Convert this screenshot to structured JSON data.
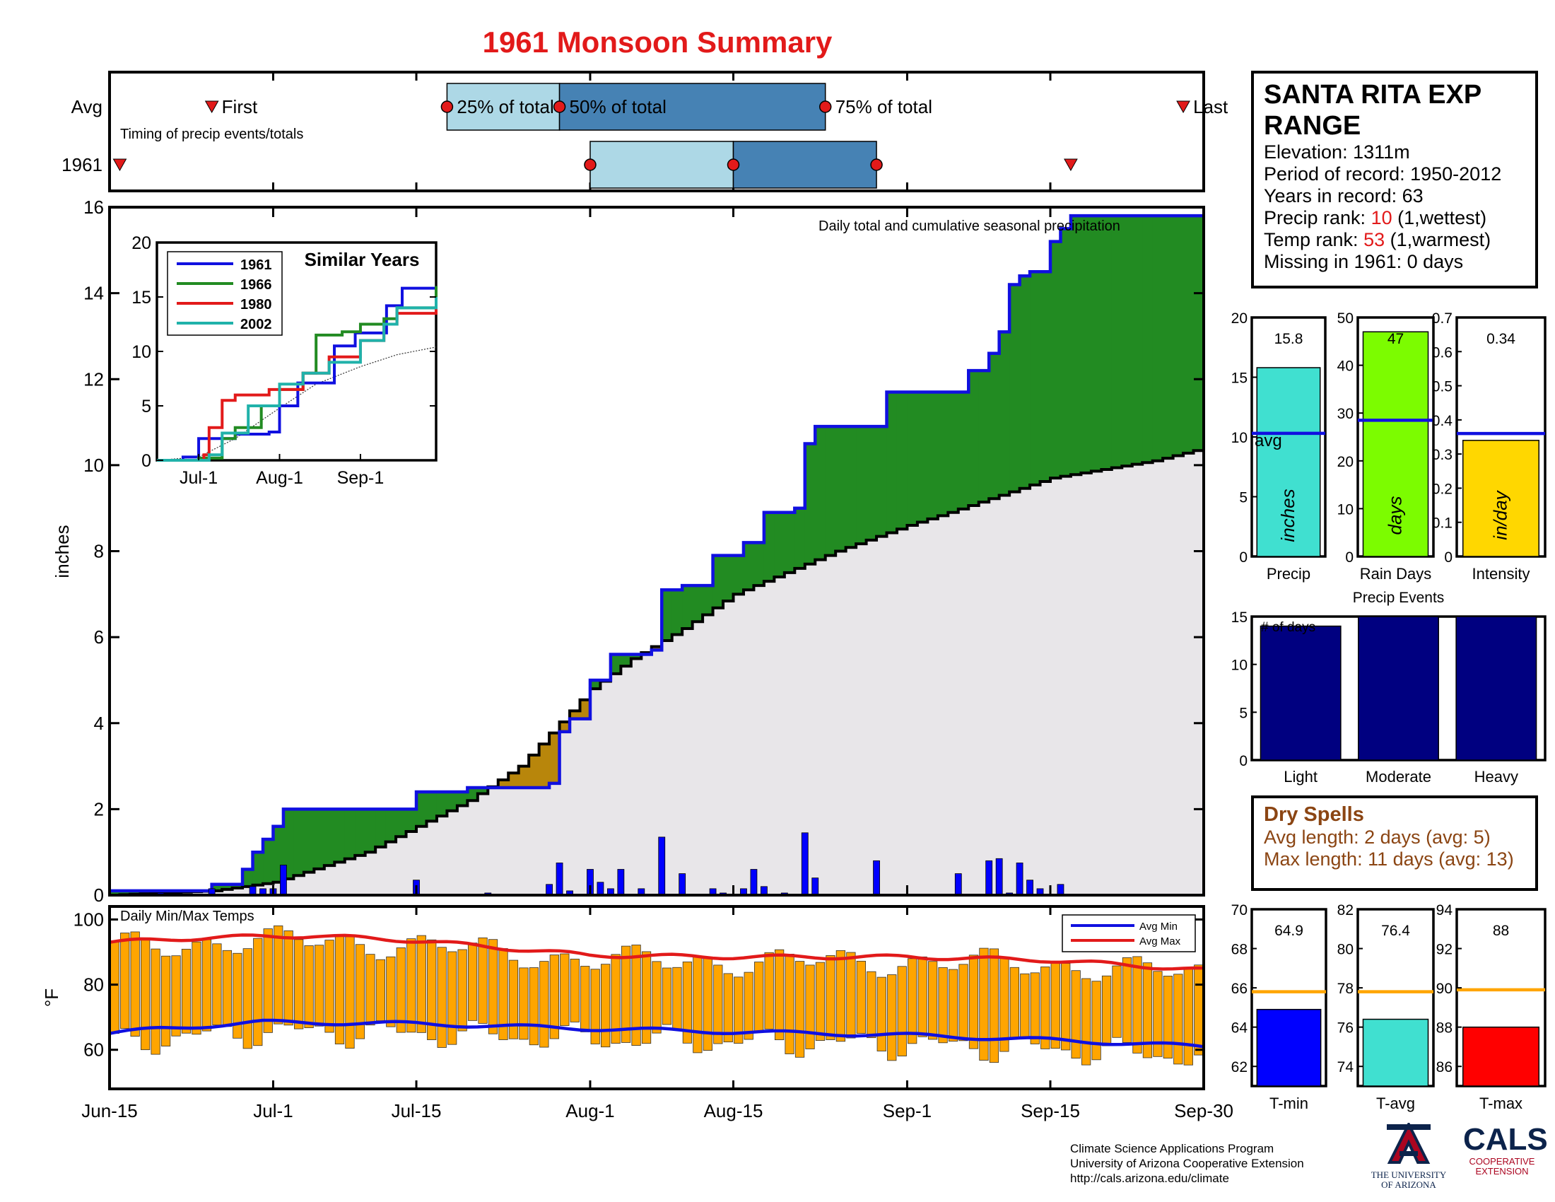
{
  "title": "1961 Monsoon Summary",
  "station": {
    "name": "SANTA RITA EXP RANGE",
    "elevation": "Elevation: 1311m",
    "period": "Period of record: 1950-2012",
    "years": "Years in record: 63",
    "precip_rank_label": "Precip rank: ",
    "precip_rank_value": "10",
    "precip_rank_note": " (1,wettest)",
    "temp_rank_label": "Temp rank: ",
    "temp_rank_value": "53",
    "temp_rank_note": " (1,warmest)",
    "missing": "Missing in 1961: 0 days"
  },
  "dry_spells": {
    "title": "Dry Spells",
    "avg_length": "Avg length: 2 days (avg: 5)",
    "max_length": "Max length: 11 days (avg: 13)"
  },
  "credits": {
    "line1": "Climate Science Applications Program",
    "line2": "University of Arizona Cooperative Extension",
    "line3": "http://cals.arizona.edu/climate"
  },
  "logos": {
    "ua_line1": "THE UNIVERSITY",
    "ua_line2": "OF ARIZONA",
    "cals": "CALS",
    "cals_line1": "COOPERATIVE",
    "cals_line2": "EXTENSION"
  },
  "colors": {
    "title_red": "#e21a1a",
    "blue": "#1010e0",
    "green": "#228b22",
    "brown": "#b8860b",
    "light_grey": "#e8e6e9",
    "light_blue_box": "#add8e6",
    "steel_blue_box": "#4682b4",
    "orange": "#ffa500",
    "navy": "#000080",
    "turquoise": "#40e0d0",
    "lime": "#7cfc00",
    "gold": "#ffd700"
  },
  "chart_data": [
    {
      "id": "timing",
      "type": "timeline",
      "row_labels": [
        "Avg",
        "1961"
      ],
      "subtitle": "Timing of precip events/totals",
      "marker_labels": {
        "first": "First",
        "p25": "25% of total",
        "p50": "50% of total",
        "p75": "75% of total",
        "last": "Last"
      },
      "avg": {
        "first": "Jun-25",
        "p25": "Jul-18",
        "p50": "Jul-29",
        "p75": "Aug-24",
        "last": "Sep-28"
      },
      "year": {
        "first": "Jun-16",
        "p25": "Aug-1",
        "p50": "Aug-15",
        "p75": "Aug-29",
        "last": "Sep-17"
      }
    },
    {
      "id": "cumulative",
      "type": "area",
      "annotation": "Daily total and cumulative seasonal precipitation",
      "ylabel": "inches",
      "ylim": [
        0,
        16
      ],
      "yticks": [
        0,
        2,
        4,
        6,
        8,
        10,
        12,
        14,
        16
      ],
      "x_range": [
        "Jun-15",
        "Sep-30"
      ],
      "x_ticks": [
        "Jun-15",
        "Jul-1",
        "Jul-15",
        "Aug-1",
        "Aug-15",
        "Sep-1",
        "Sep-15",
        "Sep-30"
      ],
      "avg_cumulative": [
        [
          "Jun-15",
          0.0
        ],
        [
          "Jun-25",
          0.1
        ],
        [
          "Jul-1",
          0.3
        ],
        [
          "Jul-10",
          1.0
        ],
        [
          "Jul-20",
          2.2
        ],
        [
          "Jul-25",
          3.0
        ],
        [
          "Aug-1",
          4.8
        ],
        [
          "Aug-5",
          5.5
        ],
        [
          "Aug-10",
          6.2
        ],
        [
          "Aug-15",
          7.0
        ],
        [
          "Aug-20",
          7.5
        ],
        [
          "Aug-25",
          8.0
        ],
        [
          "Sep-1",
          8.6
        ],
        [
          "Sep-5",
          8.9
        ],
        [
          "Sep-10",
          9.3
        ],
        [
          "Sep-15",
          9.7
        ],
        [
          "Sep-20",
          9.9
        ],
        [
          "Sep-25",
          10.1
        ],
        [
          "Sep-30",
          10.4
        ]
      ],
      "year_cumulative": [
        [
          "Jun-15",
          0.1
        ],
        [
          "Jun-24",
          0.1
        ],
        [
          "Jun-25",
          0.25
        ],
        [
          "Jun-27",
          0.25
        ],
        [
          "Jun-28",
          0.6
        ],
        [
          "Jun-29",
          1.0
        ],
        [
          "Jun-30",
          1.3
        ],
        [
          "Jul-1",
          1.6
        ],
        [
          "Jul-2",
          2.0
        ],
        [
          "Jul-14",
          2.0
        ],
        [
          "Jul-15",
          2.4
        ],
        [
          "Jul-20",
          2.5
        ],
        [
          "Jul-28",
          2.6
        ],
        [
          "Jul-29",
          3.8
        ],
        [
          "Jul-30",
          4.1
        ],
        [
          "Aug-1",
          5.0
        ],
        [
          "Aug-3",
          5.6
        ],
        [
          "Aug-7",
          5.7
        ],
        [
          "Aug-8",
          7.1
        ],
        [
          "Aug-10",
          7.2
        ],
        [
          "Aug-13",
          7.9
        ],
        [
          "Aug-16",
          8.2
        ],
        [
          "Aug-18",
          8.9
        ],
        [
          "Aug-21",
          9.0
        ],
        [
          "Aug-22",
          10.5
        ],
        [
          "Aug-23",
          10.9
        ],
        [
          "Aug-29",
          10.9
        ],
        [
          "Aug-30",
          11.7
        ],
        [
          "Sep-6",
          11.7
        ],
        [
          "Sep-7",
          12.2
        ],
        [
          "Sep-9",
          12.6
        ],
        [
          "Sep-10",
          13.1
        ],
        [
          "Sep-11",
          14.2
        ],
        [
          "Sep-12",
          14.4
        ],
        [
          "Sep-13",
          14.5
        ],
        [
          "Sep-15",
          15.2
        ],
        [
          "Sep-16",
          15.5
        ],
        [
          "Sep-17",
          15.8
        ],
        [
          "Sep-30",
          15.8
        ]
      ],
      "daily_precip": [
        [
          "Jun-20",
          0.05
        ],
        [
          "Jun-25",
          0.15
        ],
        [
          "Jun-29",
          0.2
        ],
        [
          "Jun-30",
          0.15
        ],
        [
          "Jul-1",
          0.15
        ],
        [
          "Jul-2",
          0.7
        ],
        [
          "Jul-15",
          0.35
        ],
        [
          "Jul-22",
          0.05
        ],
        [
          "Jul-28",
          0.25
        ],
        [
          "Jul-29",
          0.75
        ],
        [
          "Jul-30",
          0.1
        ],
        [
          "Aug-1",
          0.6
        ],
        [
          "Aug-2",
          0.3
        ],
        [
          "Aug-3",
          0.15
        ],
        [
          "Aug-4",
          0.6
        ],
        [
          "Aug-6",
          0.15
        ],
        [
          "Aug-8",
          1.35
        ],
        [
          "Aug-10",
          0.5
        ],
        [
          "Aug-13",
          0.15
        ],
        [
          "Aug-14",
          0.05
        ],
        [
          "Aug-16",
          0.15
        ],
        [
          "Aug-17",
          0.6
        ],
        [
          "Aug-18",
          0.2
        ],
        [
          "Aug-20",
          0.05
        ],
        [
          "Aug-22",
          1.45
        ],
        [
          "Aug-23",
          0.4
        ],
        [
          "Aug-29",
          0.8
        ],
        [
          "Sep-6",
          0.5
        ],
        [
          "Sep-9",
          0.8
        ],
        [
          "Sep-10",
          0.85
        ],
        [
          "Sep-11",
          0.05
        ],
        [
          "Sep-12",
          0.75
        ],
        [
          "Sep-13",
          0.35
        ],
        [
          "Sep-14",
          0.15
        ],
        [
          "Sep-16",
          0.25
        ]
      ]
    },
    {
      "id": "similar-years",
      "type": "line",
      "title": "Similar Years",
      "ylim": [
        0,
        20
      ],
      "yticks": [
        0,
        5,
        10,
        15,
        20
      ],
      "x_ticks": [
        "Jul-1",
        "Aug-1",
        "Sep-1"
      ],
      "series": [
        {
          "name": "1961",
          "color": "#1010e0",
          "values": [
            [
              "Jun-15",
              0
            ],
            [
              "Jun-25",
              0.3
            ],
            [
              "Jul-1",
              2.0
            ],
            [
              "Jul-14",
              2.0
            ],
            [
              "Jul-15",
              2.4
            ],
            [
              "Jul-28",
              2.6
            ],
            [
              "Aug-1",
              5.0
            ],
            [
              "Aug-8",
              7.1
            ],
            [
              "Aug-22",
              10.5
            ],
            [
              "Aug-30",
              11.7
            ],
            [
              "Sep-11",
              14.2
            ],
            [
              "Sep-17",
              15.8
            ],
            [
              "Sep-30",
              15.8
            ]
          ]
        },
        {
          "name": "1966",
          "color": "#228b22",
          "values": [
            [
              "Jun-15",
              0
            ],
            [
              "Jul-1",
              0.2
            ],
            [
              "Jul-10",
              2.0
            ],
            [
              "Jul-15",
              3.0
            ],
            [
              "Jul-25",
              5.0
            ],
            [
              "Aug-1",
              6.5
            ],
            [
              "Aug-10",
              8.0
            ],
            [
              "Aug-15",
              11.5
            ],
            [
              "Aug-25",
              11.8
            ],
            [
              "Sep-1",
              12.5
            ],
            [
              "Sep-10",
              13.0
            ],
            [
              "Sep-15",
              14.0
            ],
            [
              "Sep-25",
              14.0
            ],
            [
              "Sep-30",
              16.0
            ]
          ]
        },
        {
          "name": "1980",
          "color": "#e21a1a",
          "values": [
            [
              "Jun-15",
              0
            ],
            [
              "Jul-3",
              0.5
            ],
            [
              "Jul-5",
              3.0
            ],
            [
              "Jul-10",
              5.5
            ],
            [
              "Jul-15",
              6.0
            ],
            [
              "Jul-28",
              6.5
            ],
            [
              "Aug-10",
              8.0
            ],
            [
              "Aug-20",
              9.5
            ],
            [
              "Sep-1",
              11.0
            ],
            [
              "Sep-10",
              12.5
            ],
            [
              "Sep-15",
              13.5
            ],
            [
              "Sep-30",
              14.0
            ]
          ]
        },
        {
          "name": "2002",
          "color": "#20b2aa",
          "values": [
            [
              "Jun-15",
              0
            ],
            [
              "Jul-5",
              0.5
            ],
            [
              "Jul-10",
              2.5
            ],
            [
              "Jul-20",
              5.0
            ],
            [
              "Aug-1",
              7.0
            ],
            [
              "Aug-10",
              8.0
            ],
            [
              "Aug-20",
              9.0
            ],
            [
              "Sep-1",
              11.0
            ],
            [
              "Sep-10",
              12.5
            ],
            [
              "Sep-15",
              14.0
            ],
            [
              "Sep-30",
              15.0
            ]
          ]
        }
      ],
      "avg_line": [
        [
          "Jun-15",
          0
        ],
        [
          "Jul-1",
          0.3
        ],
        [
          "Jul-15",
          2.0
        ],
        [
          "Aug-1",
          4.8
        ],
        [
          "Aug-15",
          7.0
        ],
        [
          "Sep-1",
          8.6
        ],
        [
          "Sep-15",
          9.7
        ],
        [
          "Sep-30",
          10.4
        ]
      ]
    },
    {
      "id": "temps",
      "type": "bar",
      "annotation": "Daily Min/Max Temps",
      "ylabel": "°F",
      "ylim": [
        48,
        104
      ],
      "yticks": [
        60,
        80,
        100
      ],
      "legend": {
        "items": [
          "Avg Min",
          "Avg Max"
        ],
        "placement": "top-right"
      },
      "avg_min": [
        [
          "Jun-15",
          65
        ],
        [
          "Jun-20",
          66.5
        ],
        [
          "Jun-30",
          68.5
        ],
        [
          "Jul-15",
          68
        ],
        [
          "Aug-1",
          66.5
        ],
        [
          "Aug-15",
          65.5
        ],
        [
          "Sep-1",
          64.5
        ],
        [
          "Sep-15",
          63
        ],
        [
          "Sep-30",
          61
        ]
      ],
      "avg_max": [
        [
          "Jun-15",
          93
        ],
        [
          "Jun-25",
          94.5
        ],
        [
          "Jul-5",
          95
        ],
        [
          "Jul-15",
          93.5
        ],
        [
          "Aug-1",
          89
        ],
        [
          "Aug-15",
          88.5
        ],
        [
          "Sep-1",
          88.5
        ],
        [
          "Sep-15",
          87.5
        ],
        [
          "Sep-30",
          84.5
        ]
      ]
    },
    {
      "id": "precip-stat",
      "type": "bar",
      "xlabel": "Precip",
      "value": 15.8,
      "value_label": "15.8",
      "avg": 10.3,
      "avg_label": "avg",
      "ylim": [
        0,
        20
      ],
      "yticks": [
        0,
        5,
        10,
        15,
        20
      ],
      "unit": "inches",
      "color": "#40e0d0"
    },
    {
      "id": "raindays-stat",
      "type": "bar",
      "xlabel": "Rain Days",
      "value": 47,
      "value_label": "47",
      "avg": 28.5,
      "ylim": [
        0,
        50
      ],
      "yticks": [
        0,
        10,
        20,
        30,
        40,
        50
      ],
      "unit": "days",
      "color": "#7cfc00"
    },
    {
      "id": "intensity-stat",
      "type": "bar",
      "xlabel": "Intensity",
      "value": 0.34,
      "value_label": "0.34",
      "avg": 0.36,
      "ylim": [
        0,
        0.7
      ],
      "yticks": [
        0,
        0.1,
        0.2,
        0.3,
        0.4,
        0.5,
        0.6,
        0.7
      ],
      "unit": "in/day",
      "color": "#ffd700"
    },
    {
      "id": "events",
      "type": "bar",
      "title": "Precip Events",
      "ylabel_inner": "# of days",
      "categories": [
        "Light",
        "Moderate",
        "Heavy"
      ],
      "values": [
        14,
        15,
        15
      ],
      "ylim": [
        0,
        15
      ],
      "yticks": [
        0,
        5,
        10,
        15
      ],
      "color": "#000080"
    },
    {
      "id": "tmin-stat",
      "type": "bar",
      "xlabel": "T-min",
      "value": 64.9,
      "value_label": "64.9",
      "avg": 65.8,
      "ylim": [
        61,
        70
      ],
      "yticks": [
        62,
        64,
        66,
        68,
        70
      ],
      "color": "#0000ff"
    },
    {
      "id": "tavg-stat",
      "type": "bar",
      "xlabel": "T-avg",
      "value": 76.4,
      "value_label": "76.4",
      "avg": 77.8,
      "ylim": [
        73,
        82
      ],
      "yticks": [
        74,
        76,
        78,
        80,
        82
      ],
      "color": "#40e0d0"
    },
    {
      "id": "tmax-stat",
      "type": "bar",
      "xlabel": "T-max",
      "value": 88,
      "value_label": "88",
      "avg": 89.9,
      "ylim": [
        85,
        94
      ],
      "yticks": [
        86,
        88,
        90,
        92,
        94
      ],
      "color": "#ff0000"
    }
  ]
}
